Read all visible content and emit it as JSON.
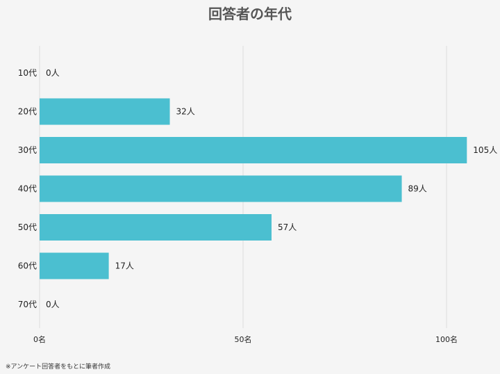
{
  "chart_data": {
    "type": "bar",
    "orientation": "horizontal",
    "title": "回答者の年代",
    "categories": [
      "10代",
      "20代",
      "30代",
      "40代",
      "50代",
      "60代",
      "70代"
    ],
    "values": [
      0,
      32,
      105,
      89,
      57,
      17,
      0
    ],
    "value_suffix": "人",
    "xlim": [
      0,
      108
    ],
    "x_ticks": [
      0,
      50,
      100
    ],
    "x_tick_labels": [
      "0名",
      "50名",
      "100名"
    ],
    "grid": "vertical",
    "bar_color": "#4bbfd0",
    "grid_color": "#dddddd"
  },
  "footnote": "※アンケート回答者をもとに筆者作成"
}
